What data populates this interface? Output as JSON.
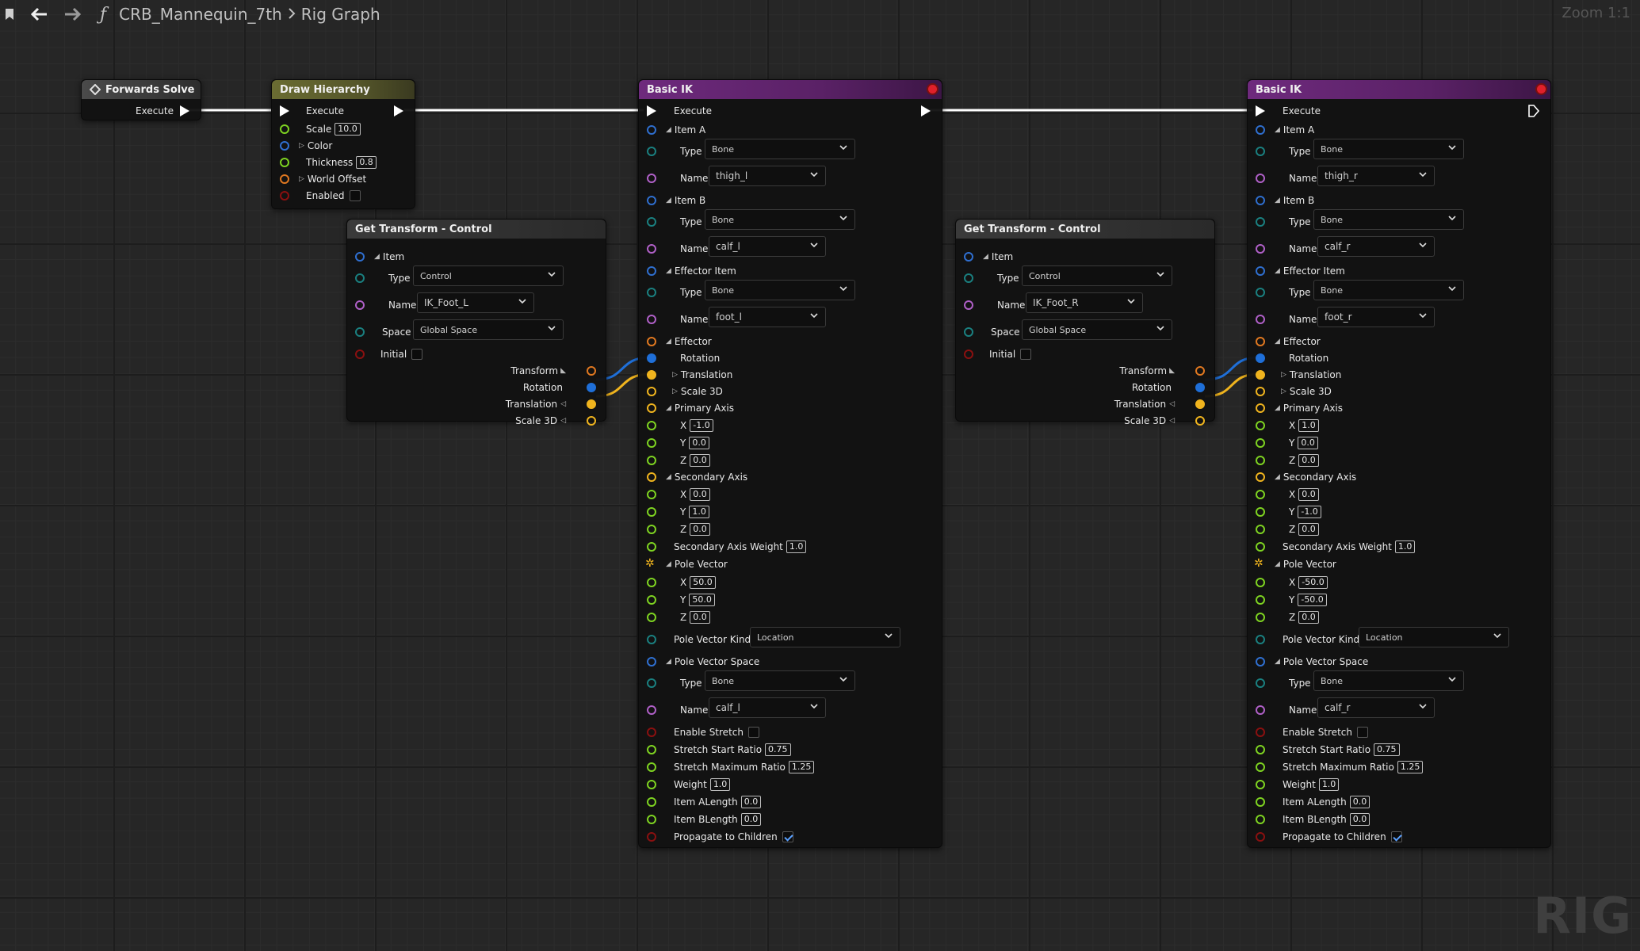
{
  "toolbar": {
    "breadcrumb_root": "CRB_Mannequin_7th",
    "breadcrumb_current": "Rig Graph",
    "function_glyph": "ƒ",
    "zoom": "Zoom 1:1"
  },
  "watermark": "RIG",
  "forwards_solve": {
    "title": "Forwards Solve",
    "execute": "Execute"
  },
  "draw_hierarchy": {
    "title": "Draw Hierarchy",
    "execute": "Execute",
    "scale_label": "Scale",
    "scale": "10.0",
    "color_label": "Color",
    "thickness_label": "Thickness",
    "thickness": "0.8",
    "world_offset_label": "World Offset",
    "enabled_label": "Enabled"
  },
  "get_transform_left": {
    "title": "Get Transform - Control",
    "item": "Item",
    "type_label": "Type",
    "type": "Control",
    "name_label": "Name",
    "name": "IK_Foot_L",
    "space_label": "Space",
    "space": "Global Space",
    "initial_label": "Initial",
    "transform": "Transform",
    "rotation": "Rotation",
    "translation": "Translation",
    "scale3d": "Scale 3D"
  },
  "get_transform_right": {
    "title": "Get Transform - Control",
    "item": "Item",
    "type_label": "Type",
    "type": "Control",
    "name_label": "Name",
    "name": "IK_Foot_R",
    "space_label": "Space",
    "space": "Global Space",
    "initial_label": "Initial",
    "transform": "Transform",
    "rotation": "Rotation",
    "translation": "Translation",
    "scale3d": "Scale 3D"
  },
  "basic_ik_left": {
    "title": "Basic IK",
    "execute": "Execute",
    "item_a": "Item A",
    "item_a_type": "Bone",
    "item_a_name": "thigh_l",
    "item_b": "Item B",
    "item_b_type": "Bone",
    "item_b_name": "calf_l",
    "effector_item": "Effector Item",
    "effector_item_type": "Bone",
    "effector_item_name": "foot_l",
    "type_label": "Type",
    "name_label": "Name",
    "effector": "Effector",
    "rotation": "Rotation",
    "translation": "Translation",
    "scale3d": "Scale 3D",
    "primary_axis": "Primary Axis",
    "primary_x": "-1.0",
    "primary_y": "0.0",
    "primary_z": "0.0",
    "secondary_axis": "Secondary Axis",
    "secondary_x": "0.0",
    "secondary_y": "1.0",
    "secondary_z": "0.0",
    "secondary_weight_label": "Secondary Axis Weight",
    "secondary_weight": "1.0",
    "pole_vector": "Pole Vector",
    "pole_x": "50.0",
    "pole_y": "50.0",
    "pole_z": "0.0",
    "pole_vector_kind_label": "Pole Vector Kind",
    "pole_vector_kind": "Location",
    "pole_vector_space": "Pole Vector Space",
    "pole_space_type": "Bone",
    "pole_space_name": "calf_l",
    "enable_stretch": "Enable Stretch",
    "stretch_start_label": "Stretch Start Ratio",
    "stretch_start": "0.75",
    "stretch_max_label": "Stretch Maximum Ratio",
    "stretch_max": "1.25",
    "weight_label": "Weight",
    "weight": "1.0",
    "item_alength_label": "Item ALength",
    "item_alength": "0.0",
    "item_blength_label": "Item BLength",
    "item_blength": "0.0",
    "propagate_label": "Propagate to Children",
    "x": "X",
    "y": "Y",
    "z": "Z"
  },
  "basic_ik_right": {
    "title": "Basic IK",
    "execute": "Execute",
    "item_a": "Item A",
    "item_a_type": "Bone",
    "item_a_name": "thigh_r",
    "item_b": "Item B",
    "item_b_type": "Bone",
    "item_b_name": "calf_r",
    "effector_item": "Effector Item",
    "effector_item_type": "Bone",
    "effector_item_name": "foot_r",
    "type_label": "Type",
    "name_label": "Name",
    "effector": "Effector",
    "rotation": "Rotation",
    "translation": "Translation",
    "scale3d": "Scale 3D",
    "primary_axis": "Primary Axis",
    "primary_x": "1.0",
    "primary_y": "0.0",
    "primary_z": "0.0",
    "secondary_axis": "Secondary Axis",
    "secondary_x": "0.0",
    "secondary_y": "-1.0",
    "secondary_z": "0.0",
    "secondary_weight_label": "Secondary Axis Weight",
    "secondary_weight": "1.0",
    "pole_vector": "Pole Vector",
    "pole_x": "-50.0",
    "pole_y": "-50.0",
    "pole_z": "0.0",
    "pole_vector_kind_label": "Pole Vector Kind",
    "pole_vector_kind": "Location",
    "pole_vector_space": "Pole Vector Space",
    "pole_space_type": "Bone",
    "pole_space_name": "calf_r",
    "enable_stretch": "Enable Stretch",
    "stretch_start_label": "Stretch Start Ratio",
    "stretch_start": "0.75",
    "stretch_max_label": "Stretch Maximum Ratio",
    "stretch_max": "1.25",
    "weight_label": "Weight",
    "weight": "1.0",
    "item_alength_label": "Item ALength",
    "item_alength": "0.0",
    "item_blength_label": "Item BLength",
    "item_blength": "0.0",
    "propagate_label": "Propagate to Children",
    "x": "X",
    "y": "Y",
    "z": "Z"
  },
  "colors": {
    "exec_wire": "#ffffff",
    "rotation_wire": "#1f6fd8",
    "translation_wire": "#f0b41e",
    "basic_ik_header": "#6e2a7d",
    "draw_hierarchy_header": "#6a6c32"
  }
}
